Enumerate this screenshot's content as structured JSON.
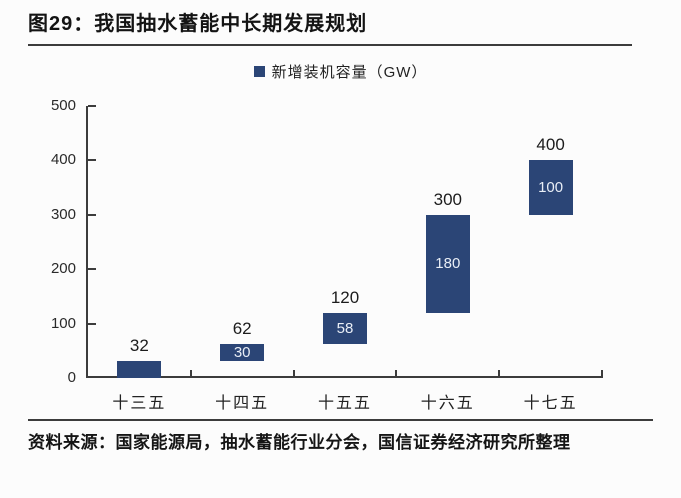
{
  "page": {
    "background": "#fcfcfc"
  },
  "header": {
    "title": "图29：我国抽水蓄能中长期发展规划"
  },
  "legend": {
    "label": "新增装机容量（GW）"
  },
  "source": {
    "text": "资料来源：国家能源局，抽水蓄能行业分会，国信证券经济研究所整理"
  },
  "colors": {
    "bar": "#2b4576",
    "axis": "#3c3c3c",
    "text": "#141414",
    "inside_label": "#e9eef6",
    "background": "#fcfcfc"
  },
  "chart_data": {
    "type": "bar",
    "variant": "floating-waterfall",
    "title": "图29：我国抽水蓄能中长期发展规划",
    "categories": [
      "十三五",
      "十四五",
      "十五五",
      "十六五",
      "十七五"
    ],
    "series": [
      {
        "name": "新增装机容量（GW）",
        "base": [
          0,
          32,
          62,
          120,
          300
        ],
        "increment": [
          32,
          30,
          58,
          180,
          100
        ],
        "cumulative_top": [
          32,
          62,
          120,
          300,
          400
        ]
      }
    ],
    "top_labels": [
      "32",
      "62",
      "120",
      "300",
      "400"
    ],
    "inside_labels": [
      null,
      "30",
      "58",
      "180",
      "100"
    ],
    "xlabel": "",
    "ylabel": "",
    "ylim": [
      0,
      500
    ],
    "yticks": [
      0,
      100,
      200,
      300,
      400,
      500
    ],
    "grid": false,
    "legend_position": "top-center"
  }
}
